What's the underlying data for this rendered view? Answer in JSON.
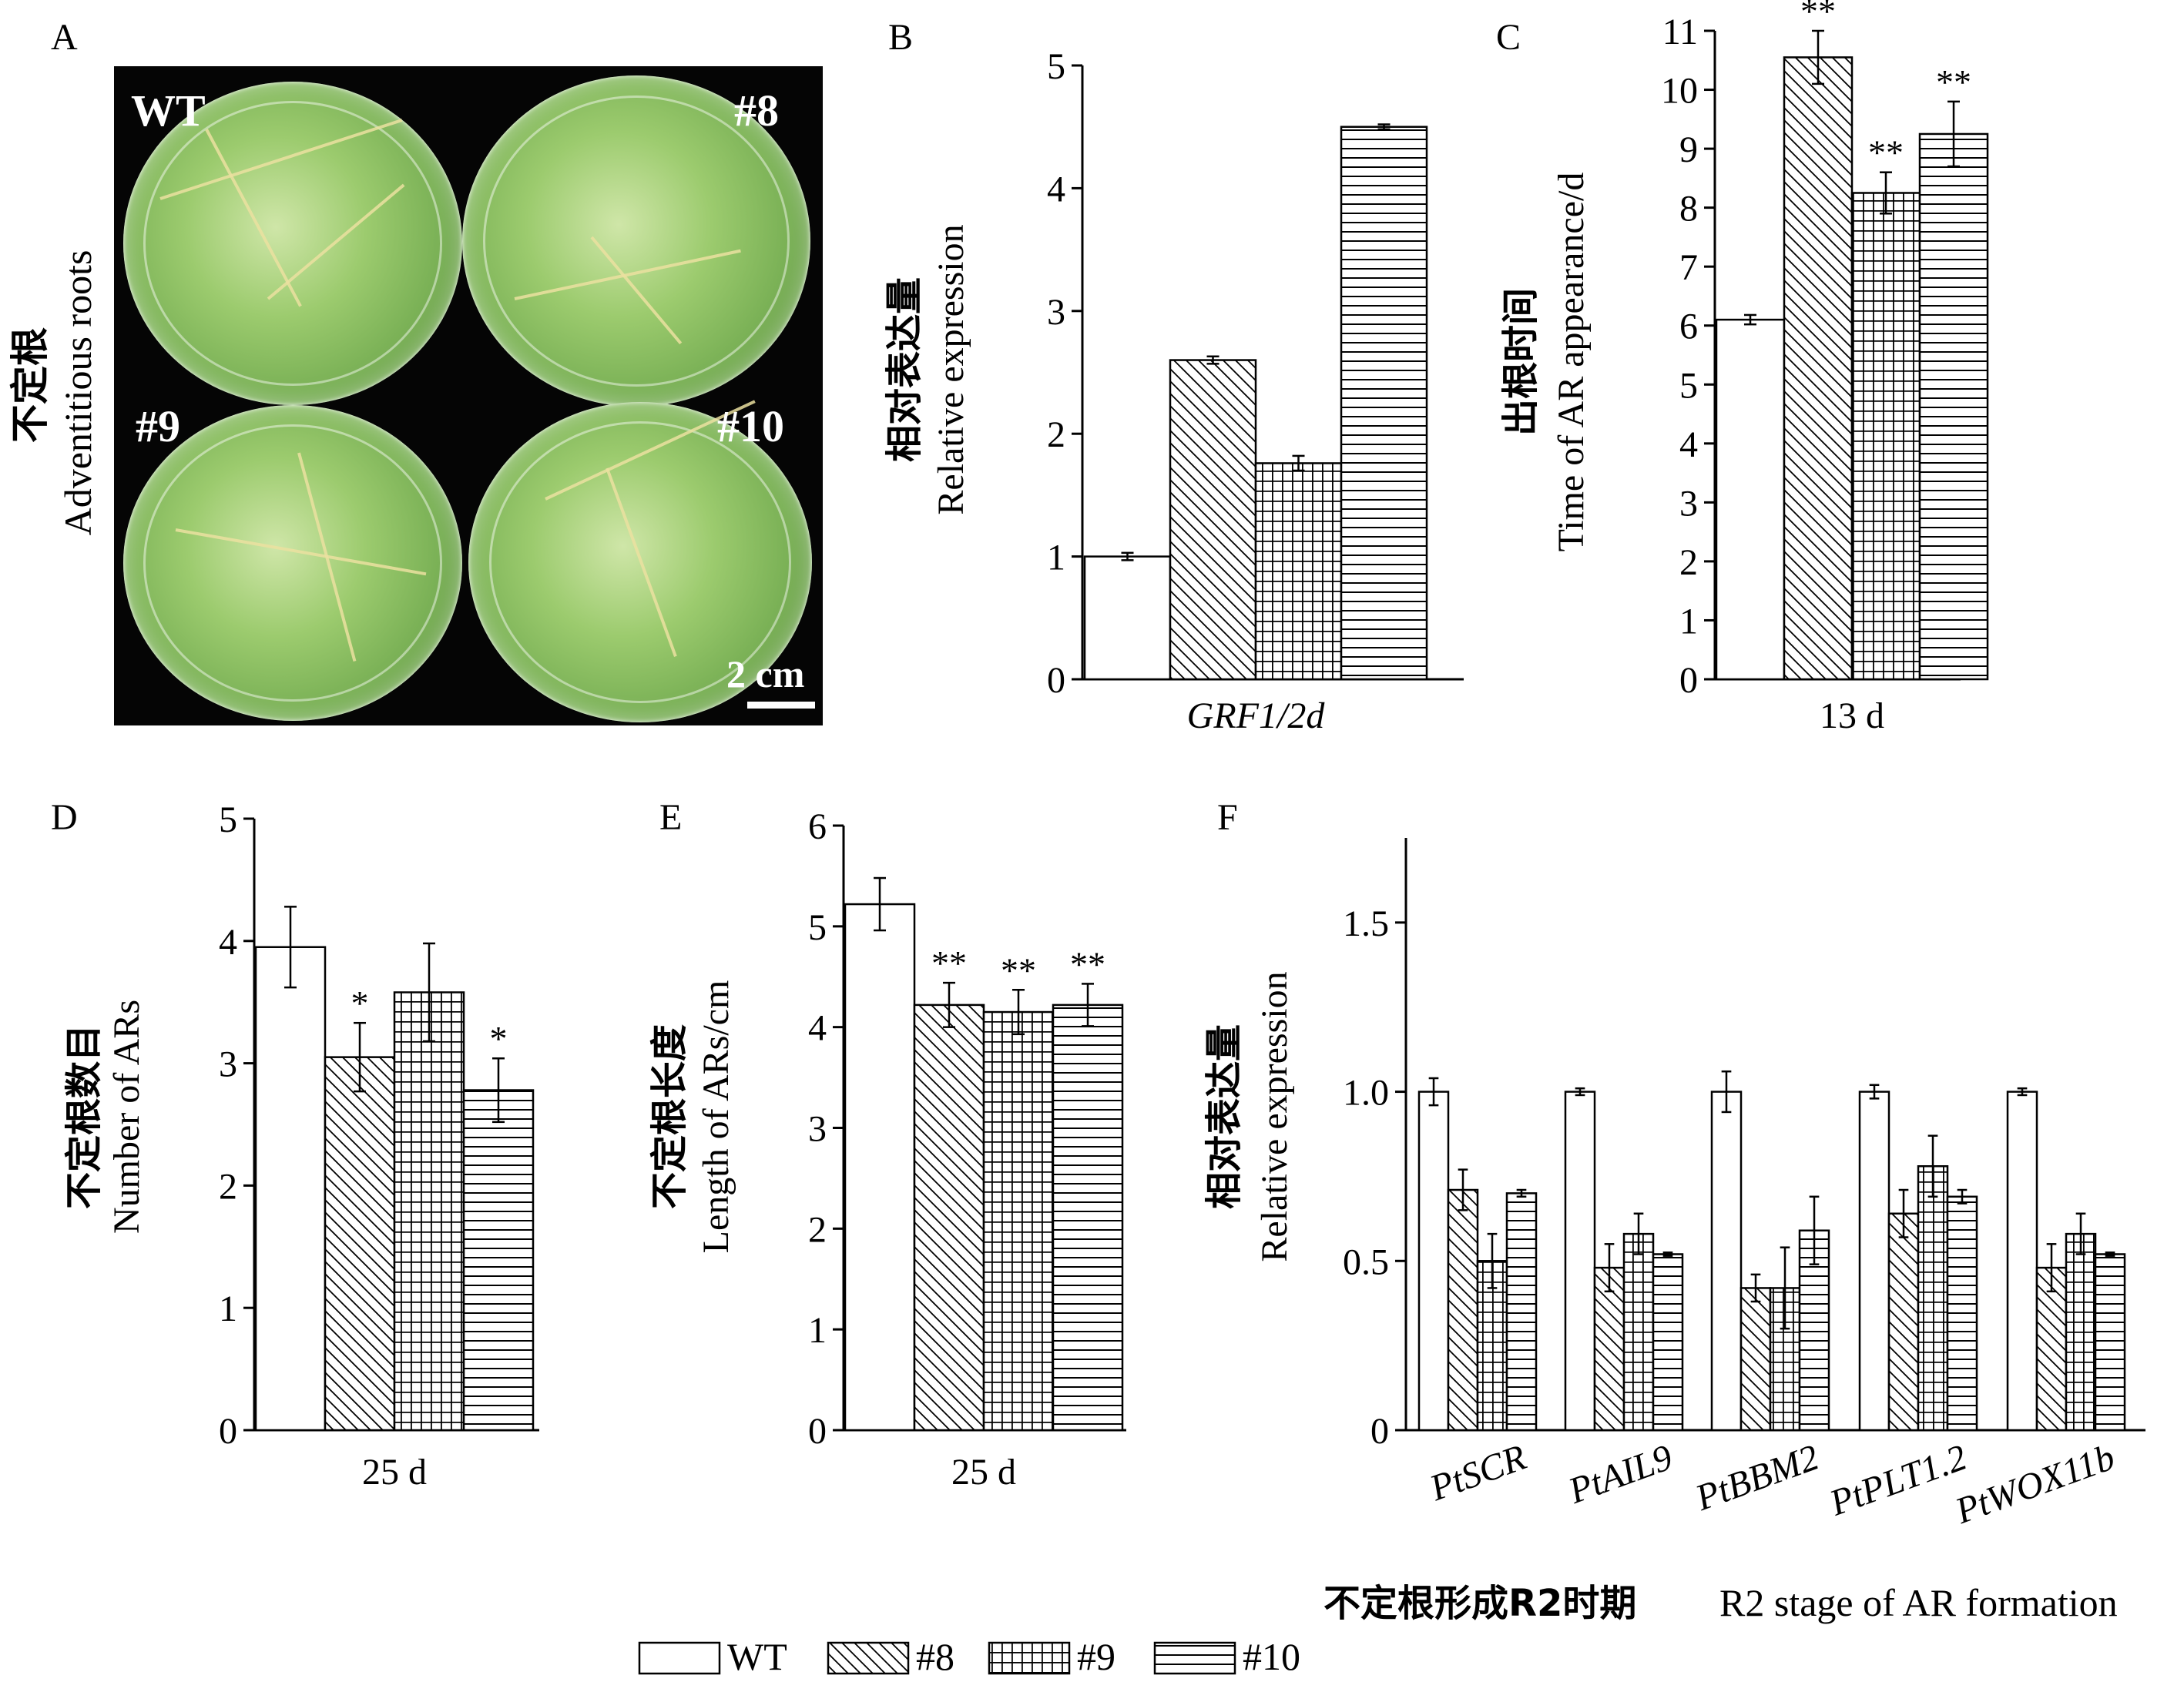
{
  "panels": {
    "A": "A",
    "B": "B",
    "C": "C",
    "D": "D",
    "E": "E",
    "F": "F"
  },
  "photo": {
    "ylabel_cn": "不定根",
    "ylabel_en": "Adventitious roots",
    "labels": [
      "WT",
      "#8",
      "#9",
      "#10"
    ],
    "scale": "2 cm"
  },
  "legend": [
    "WT",
    "#8",
    "#9",
    "#10"
  ],
  "chart_data": [
    {
      "id": "B",
      "type": "bar",
      "categories": [
        "GRF1/2d"
      ],
      "series": [
        {
          "name": "WT",
          "values": [
            1.0
          ],
          "errors": [
            0.03
          ],
          "sig": [
            ""
          ]
        },
        {
          "name": "#8",
          "values": [
            2.6
          ],
          "errors": [
            0.03
          ],
          "sig": [
            ""
          ]
        },
        {
          "name": "#9",
          "values": [
            1.76
          ],
          "errors": [
            0.06
          ],
          "sig": [
            ""
          ]
        },
        {
          "name": "#10",
          "values": [
            4.5
          ],
          "errors": [
            0.02
          ],
          "sig": [
            ""
          ]
        }
      ],
      "ylim": [
        0,
        5
      ],
      "yticks": [
        "0",
        "1",
        "2",
        "3",
        "4",
        "5"
      ],
      "ylabel_cn": "相对表达量",
      "ylabel_en": "Relative expression",
      "xlabel": ""
    },
    {
      "id": "C",
      "type": "bar",
      "categories": [
        "13 d"
      ],
      "series": [
        {
          "name": "WT",
          "values": [
            6.1
          ],
          "errors": [
            0.08
          ],
          "sig": [
            ""
          ]
        },
        {
          "name": "#8",
          "values": [
            10.55
          ],
          "errors": [
            0.45
          ],
          "sig": [
            "**"
          ]
        },
        {
          "name": "#9",
          "values": [
            8.25
          ],
          "errors": [
            0.35
          ],
          "sig": [
            "**"
          ]
        },
        {
          "name": "#10",
          "values": [
            9.25
          ],
          "errors": [
            0.55
          ],
          "sig": [
            "**"
          ]
        }
      ],
      "ylim": [
        0,
        11
      ],
      "yticks": [
        "0",
        "1",
        "2",
        "3",
        "4",
        "5",
        "6",
        "7",
        "8",
        "9",
        "10",
        "11"
      ],
      "ylabel_cn": "出根时间",
      "ylabel_en": "Time of AR appearance/d",
      "xlabel": ""
    },
    {
      "id": "D",
      "type": "bar",
      "categories": [
        "25 d"
      ],
      "series": [
        {
          "name": "WT",
          "values": [
            3.95
          ],
          "errors": [
            0.33
          ],
          "sig": [
            ""
          ]
        },
        {
          "name": "#8",
          "values": [
            3.05
          ],
          "errors": [
            0.28
          ],
          "sig": [
            "*"
          ]
        },
        {
          "name": "#9",
          "values": [
            3.58
          ],
          "errors": [
            0.4
          ],
          "sig": [
            ""
          ]
        },
        {
          "name": "#10",
          "values": [
            2.78
          ],
          "errors": [
            0.26
          ],
          "sig": [
            "*"
          ]
        }
      ],
      "ylim": [
        0,
        5
      ],
      "yticks": [
        "0",
        "1",
        "2",
        "3",
        "4",
        "5"
      ],
      "ylabel_cn": "不定根数目",
      "ylabel_en": "Number of ARs",
      "xlabel": ""
    },
    {
      "id": "E",
      "type": "bar",
      "categories": [
        "25 d"
      ],
      "series": [
        {
          "name": "WT",
          "values": [
            5.22
          ],
          "errors": [
            0.26
          ],
          "sig": [
            ""
          ]
        },
        {
          "name": "#8",
          "values": [
            4.22
          ],
          "errors": [
            0.22
          ],
          "sig": [
            "**"
          ]
        },
        {
          "name": "#9",
          "values": [
            4.15
          ],
          "errors": [
            0.22
          ],
          "sig": [
            "**"
          ]
        },
        {
          "name": "#10",
          "values": [
            4.22
          ],
          "errors": [
            0.21
          ],
          "sig": [
            "**"
          ]
        }
      ],
      "ylim": [
        0,
        6
      ],
      "yticks": [
        "0",
        "1",
        "2",
        "3",
        "4",
        "5",
        "6"
      ],
      "ylabel_cn": "不定根长度",
      "ylabel_en": "Length of ARs/cm",
      "xlabel": ""
    },
    {
      "id": "F",
      "type": "bar",
      "categories": [
        "PtSCR",
        "PtAIL9",
        "PtBBM2",
        "PtPLT1.2",
        "PtWOX11b"
      ],
      "series": [
        {
          "name": "WT",
          "values": [
            1.0,
            1.0,
            1.0,
            1.0,
            1.0
          ],
          "errors": [
            0.04,
            0.01,
            0.06,
            0.02,
            0.01
          ],
          "sig": [
            "",
            "",
            "",
            "",
            ""
          ]
        },
        {
          "name": "#8",
          "values": [
            0.71,
            0.48,
            0.42,
            0.64,
            0.48
          ],
          "errors": [
            0.06,
            0.07,
            0.04,
            0.07,
            0.07
          ],
          "sig": [
            "",
            "",
            "",
            "",
            ""
          ]
        },
        {
          "name": "#9",
          "values": [
            0.5,
            0.58,
            0.42,
            0.78,
            0.58
          ],
          "errors": [
            0.08,
            0.06,
            0.12,
            0.09,
            0.06
          ],
          "sig": [
            "",
            "",
            "",
            "",
            ""
          ]
        },
        {
          "name": "#10",
          "values": [
            0.7,
            0.52,
            0.59,
            0.69,
            0.52
          ],
          "errors": [
            0.01,
            0.005,
            0.1,
            0.02,
            0.005
          ],
          "sig": [
            "",
            "",
            "",
            "",
            ""
          ]
        }
      ],
      "ylim": [
        0,
        1.75
      ],
      "yticks": [
        "0",
        "0.5",
        "1.0",
        "1.5"
      ],
      "ylabel_cn": "相对表达量",
      "ylabel_en": "Relative expression",
      "xlabel_cn": "不定根形成R2时期",
      "xlabel_en": "R2 stage of AR formation"
    }
  ]
}
